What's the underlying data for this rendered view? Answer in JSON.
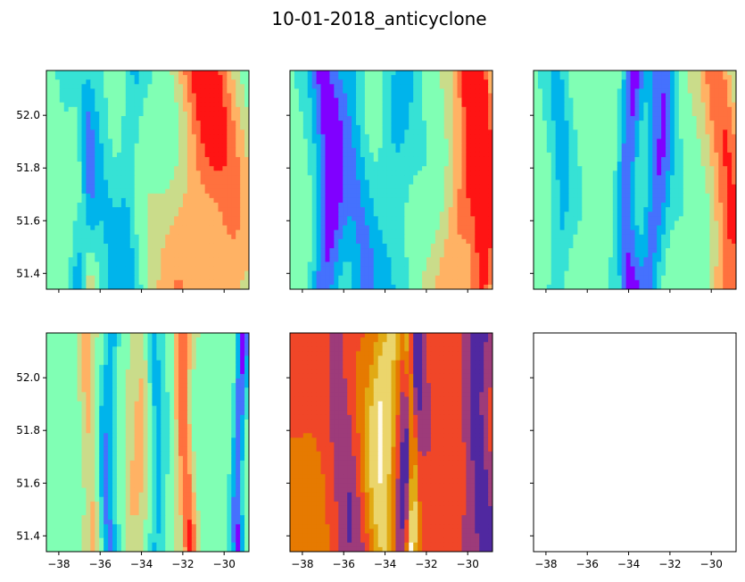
{
  "chart_data": {
    "type": "contour",
    "title": "10-01-2018_anticyclone",
    "layout": {
      "rows": 2,
      "cols": 3
    },
    "x_range": [
      -38.6,
      -28.8
    ],
    "y_range": [
      51.34,
      52.17
    ],
    "x_ticks": [
      -38,
      -36,
      -34,
      -32,
      -30
    ],
    "y_ticks": [
      52.0,
      51.8,
      51.6,
      51.4
    ],
    "x_tick_labels": [
      "−38",
      "−36",
      "−34",
      "−32",
      "−30"
    ],
    "y_tick_labels": [
      "52.0",
      "51.8",
      "51.6",
      "51.4"
    ],
    "panels": [
      {
        "row": 0,
        "col": 0,
        "colormap": "rainbow",
        "show_yticklabels": true,
        "show_xticklabels": false,
        "features": [
          {
            "x": -37.0,
            "w": 0.5,
            "v": 0.08
          },
          {
            "x": -35.7,
            "w": 0.6,
            "v": 0.35
          },
          {
            "x": -34.4,
            "w": 0.5,
            "v": 0.3
          },
          {
            "x": -31.6,
            "w": 1.2,
            "v": 0.75
          },
          {
            "x": -30.5,
            "w": 1.3,
            "v": 0.8
          },
          {
            "x": -36.8,
            "w": 0.4,
            "v": 0.8
          }
        ]
      },
      {
        "row": 0,
        "col": 1,
        "colormap": "rainbow",
        "show_yticklabels": false,
        "show_xticklabels": false,
        "features": [
          {
            "x": -37.0,
            "w": 0.7,
            "v": 0.05
          },
          {
            "x": -35.3,
            "w": 0.8,
            "v": 0.2
          },
          {
            "x": -33.2,
            "w": 0.8,
            "v": 0.3
          },
          {
            "x": -30.2,
            "w": 1.0,
            "v": 0.85
          },
          {
            "x": -29.5,
            "w": 0.6,
            "v": 0.95
          }
        ]
      },
      {
        "row": 0,
        "col": 2,
        "colormap": "rainbow",
        "show_yticklabels": false,
        "show_xticklabels": false,
        "features": [
          {
            "x": -37.5,
            "w": 0.5,
            "v": 0.3
          },
          {
            "x": -35.6,
            "w": 0.7,
            "v": 0.5
          },
          {
            "x": -33.8,
            "w": 0.5,
            "v": 0.05
          },
          {
            "x": -32.7,
            "w": 0.6,
            "v": 0.1
          },
          {
            "x": -29.5,
            "w": 0.8,
            "v": 0.9
          }
        ]
      },
      {
        "row": 1,
        "col": 0,
        "colormap": "rainbow",
        "show_yticklabels": true,
        "show_xticklabels": true,
        "features": [
          {
            "x": -37.9,
            "w": 0.4,
            "v": 0.5
          },
          {
            "x": -36.5,
            "w": 0.4,
            "v": 0.75
          },
          {
            "x": -35.5,
            "w": 0.4,
            "v": 0.2
          },
          {
            "x": -34.2,
            "w": 0.5,
            "v": 0.7
          },
          {
            "x": -33.4,
            "w": 0.4,
            "v": 0.25
          },
          {
            "x": -31.8,
            "w": 0.4,
            "v": 0.95
          },
          {
            "x": -29.2,
            "w": 0.3,
            "v": 0.05
          }
        ]
      },
      {
        "row": 1,
        "col": 1,
        "colormap": "CMRmap",
        "show_yticklabels": false,
        "show_xticklabels": true,
        "features": [
          {
            "x": -37.8,
            "w": 1.0,
            "v": 0.6
          },
          {
            "x": -36.0,
            "w": 0.6,
            "v": 0.35
          },
          {
            "x": -33.8,
            "w": 0.8,
            "v": 0.9
          },
          {
            "x": -33.0,
            "w": 0.5,
            "v": 0.12
          },
          {
            "x": -32.8,
            "w": 0.25,
            "v": 0.98
          },
          {
            "x": -29.3,
            "w": 0.6,
            "v": 0.2
          }
        ]
      },
      {
        "row": 1,
        "col": 2,
        "colormap": "none",
        "show_yticklabels": false,
        "show_xticklabels": true,
        "features": []
      }
    ]
  }
}
